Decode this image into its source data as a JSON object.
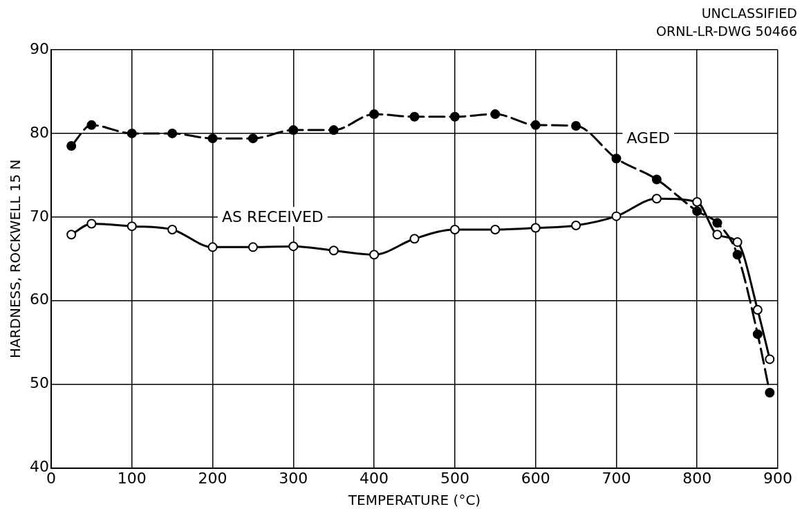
{
  "chart_data": {
    "type": "line",
    "xlabel": "TEMPERATURE (°C)",
    "ylabel": "HARDNESS, ROCKWELL 15 N",
    "annotations": [
      "UNCLASSIFIED",
      "ORNL-LR-DWG 50466"
    ],
    "x": [
      25,
      50,
      100,
      150,
      200,
      250,
      300,
      350,
      400,
      450,
      500,
      550,
      600,
      650,
      700,
      750,
      800,
      825,
      850,
      875,
      890
    ],
    "series": [
      {
        "name": "AGED",
        "color": "#000000",
        "line_style": "dashed",
        "values": [
          78.5,
          81,
          80,
          80,
          79.4,
          79.4,
          80.4,
          80.4,
          82.3,
          82,
          82,
          82.3,
          81,
          80.9,
          77,
          74.5,
          70.7,
          69.3,
          65.5,
          56,
          49
        ]
      },
      {
        "name": "AS RECEIVED",
        "color": "#000000",
        "line_style": "solid",
        "values": [
          67.9,
          69.2,
          68.9,
          68.5,
          66.4,
          66.4,
          66.5,
          66,
          65.5,
          67.4,
          68.5,
          68.5,
          68.7,
          69,
          70.1,
          72.2,
          71.8,
          67.9,
          67,
          58.9,
          53
        ]
      }
    ],
    "xlim": [
      0,
      900
    ],
    "xticks": [
      0,
      100,
      200,
      300,
      400,
      500,
      600,
      700,
      800,
      900
    ],
    "ylim": [
      40,
      90
    ],
    "yticks": [
      40,
      50,
      60,
      70,
      80,
      90
    ],
    "grid": true,
    "legend": false,
    "marker": "circle"
  }
}
